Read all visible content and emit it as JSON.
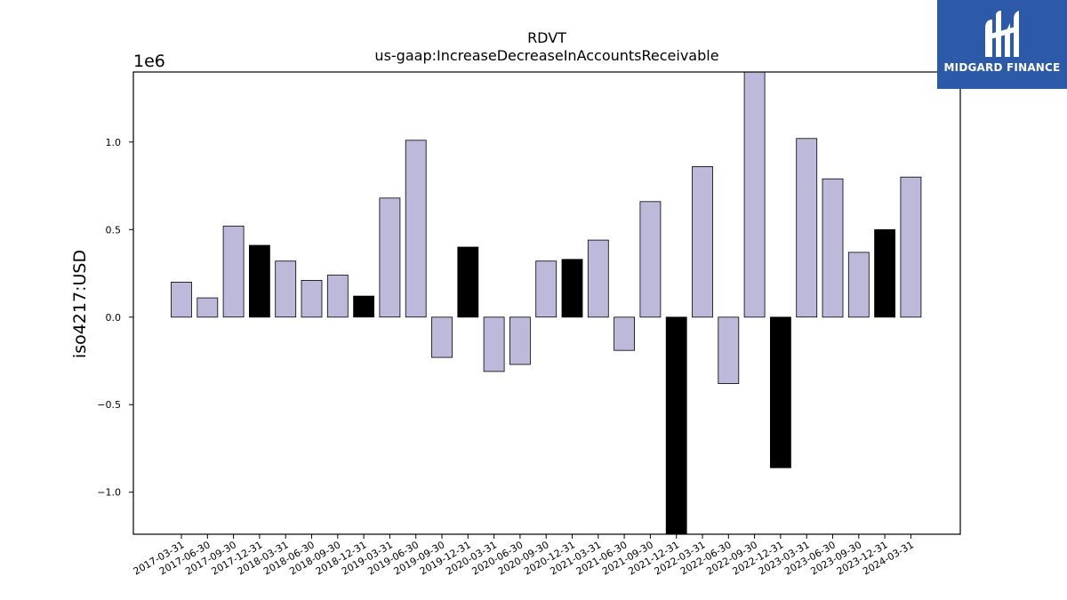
{
  "brand": {
    "name": "MIDGARD FINANCE",
    "color": "#2c5aa9"
  },
  "colors": {
    "normal": "#bcb9db",
    "highlight": "#000000"
  },
  "chart_data": {
    "type": "bar",
    "title": "RDVT",
    "subtitle": "us-gaap:IncreaseDecreaseInAccountsReceivable",
    "xlabel": "",
    "ylabel": "iso4217:USD",
    "y_offset_label": "1e6",
    "ylim": [
      -1.24,
      1.4
    ],
    "yticks": [
      -1.0,
      -0.5,
      0.0,
      0.5,
      1.0
    ],
    "ytick_labels": [
      "−1.0",
      "−0.5",
      "0.0",
      "0.5",
      "1.0"
    ],
    "grid": false,
    "categories": [
      "2017-03-31",
      "2017-06-30",
      "2017-09-30",
      "2017-12-31",
      "2018-03-31",
      "2018-06-30",
      "2018-09-30",
      "2018-12-31",
      "2019-03-31",
      "2019-06-30",
      "2019-09-30",
      "2019-12-31",
      "2020-03-31",
      "2020-06-30",
      "2020-09-30",
      "2020-12-31",
      "2021-03-31",
      "2021-06-30",
      "2021-09-30",
      "2021-12-31",
      "2022-03-31",
      "2022-06-30",
      "2022-09-30",
      "2022-12-31",
      "2023-03-31",
      "2023-06-30",
      "2023-09-30",
      "2023-12-31",
      "2024-03-31"
    ],
    "values": [
      0.2,
      0.11,
      0.52,
      0.41,
      0.32,
      0.21,
      0.24,
      0.12,
      0.68,
      1.01,
      -0.23,
      0.4,
      -0.31,
      -0.27,
      0.32,
      0.33,
      0.44,
      -0.19,
      0.66,
      -1.24,
      0.86,
      -0.38,
      1.4,
      -0.86,
      1.02,
      0.79,
      0.37,
      0.5,
      0.8
    ],
    "highlighted": [
      false,
      false,
      false,
      true,
      false,
      false,
      false,
      true,
      false,
      false,
      false,
      true,
      false,
      false,
      false,
      true,
      false,
      false,
      false,
      true,
      false,
      false,
      false,
      true,
      false,
      false,
      false,
      true,
      false
    ]
  }
}
